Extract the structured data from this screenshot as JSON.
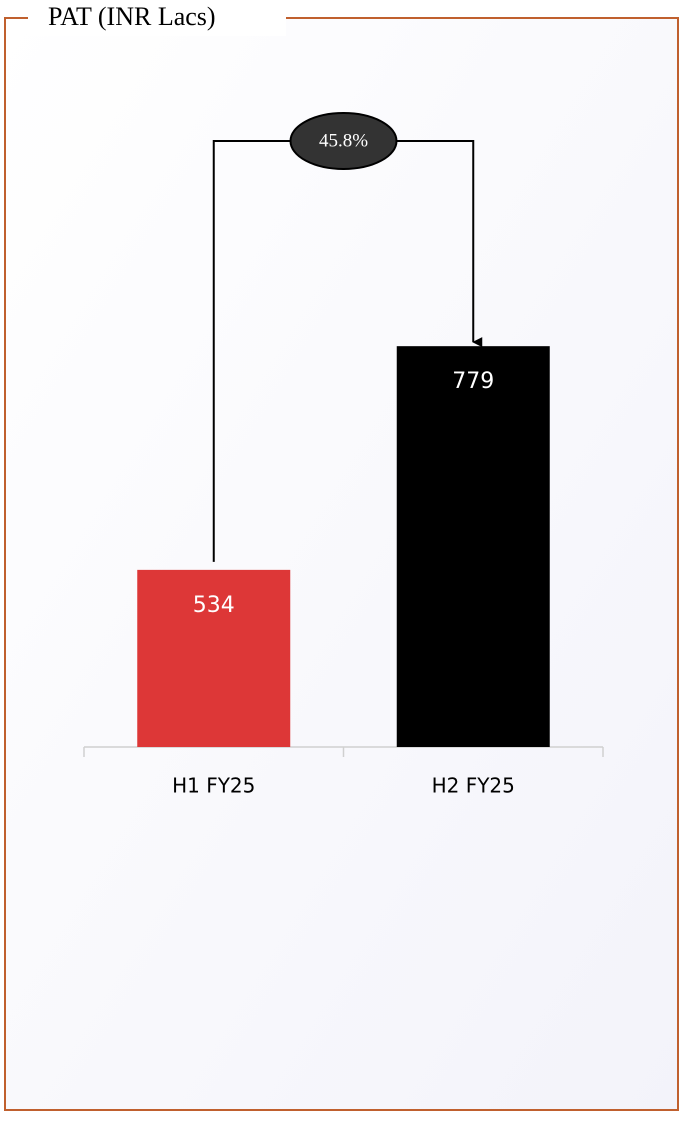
{
  "chart_data": {
    "type": "bar",
    "title": "PAT (INR Lacs)",
    "categories": [
      "H1 FY25",
      "H2 FY25"
    ],
    "values": [
      534,
      779
    ],
    "colors": [
      "#dd3737",
      "#000000"
    ],
    "annotation": "45.8%",
    "ylim": [
      340,
      800
    ]
  }
}
